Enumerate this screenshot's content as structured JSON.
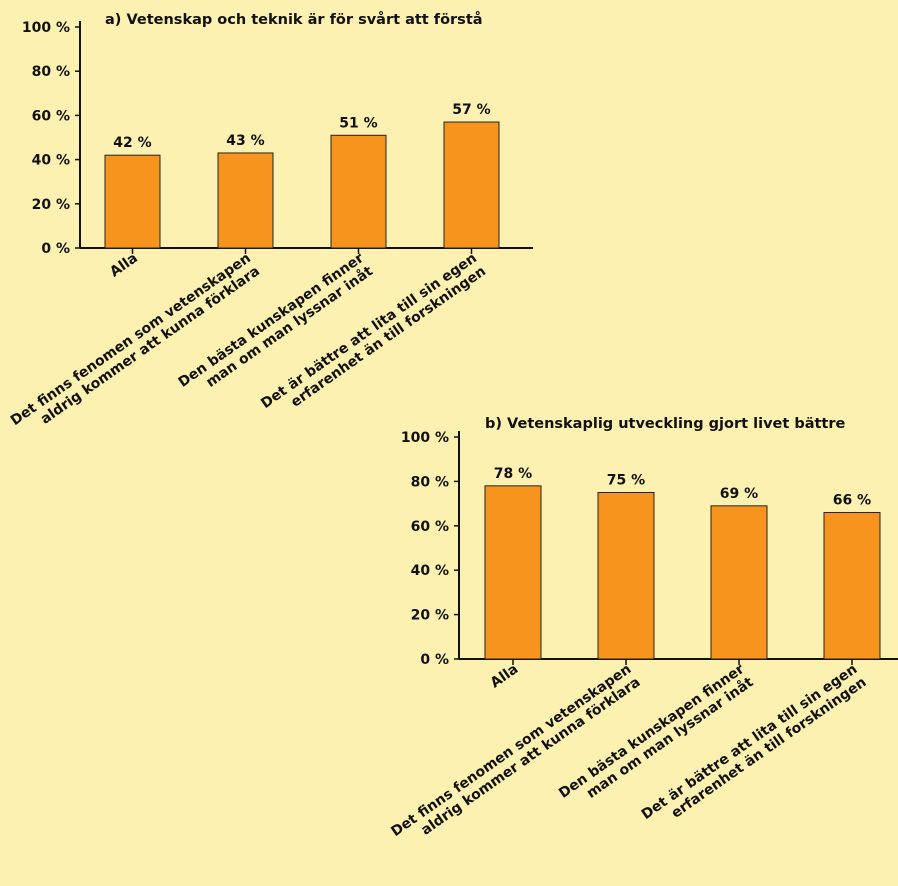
{
  "background_color": "#fcf1b1",
  "bar_color": "#f7941d",
  "chart_data": [
    {
      "type": "bar",
      "title": "a) Vetenskap och teknik är för svårt att förstå",
      "categories": [
        "Alla",
        "Det finns fenomen som vetenskapen|aldrig kommer att kunna förklara",
        "Den bästa kunskapen finner|man om man lyssnar inåt",
        "Det är bättre att lita till sin egen|erfarenhet än till forskningen"
      ],
      "values": [
        42,
        43,
        51,
        57
      ],
      "value_labels": [
        "42 %",
        "43 %",
        "51 %",
        "57 %"
      ],
      "yticks": [
        "0 %",
        "20 %",
        "40 %",
        "60 %",
        "80 %",
        "100 %"
      ],
      "ylim": [
        0,
        100
      ],
      "xlabel": "",
      "ylabel": ""
    },
    {
      "type": "bar",
      "title": "b) Vetenskaplig utveckling gjort livet bättre",
      "categories": [
        "Alla",
        "Det finns fenomen som vetenskapen|aldrig kommer att kunna förklara",
        "Den bästa kunskapen finner|man om man lyssnar inåt",
        "Det är bättre att lita till sin egen|erfarenhet än till forskningen"
      ],
      "values": [
        78,
        75,
        69,
        66
      ],
      "value_labels": [
        "78 %",
        "75 %",
        "69 %",
        "66 %"
      ],
      "yticks": [
        "0 %",
        "20 %",
        "40 %",
        "60 %",
        "80 %",
        "100 %"
      ],
      "ylim": [
        0,
        100
      ],
      "xlabel": "",
      "ylabel": ""
    }
  ]
}
